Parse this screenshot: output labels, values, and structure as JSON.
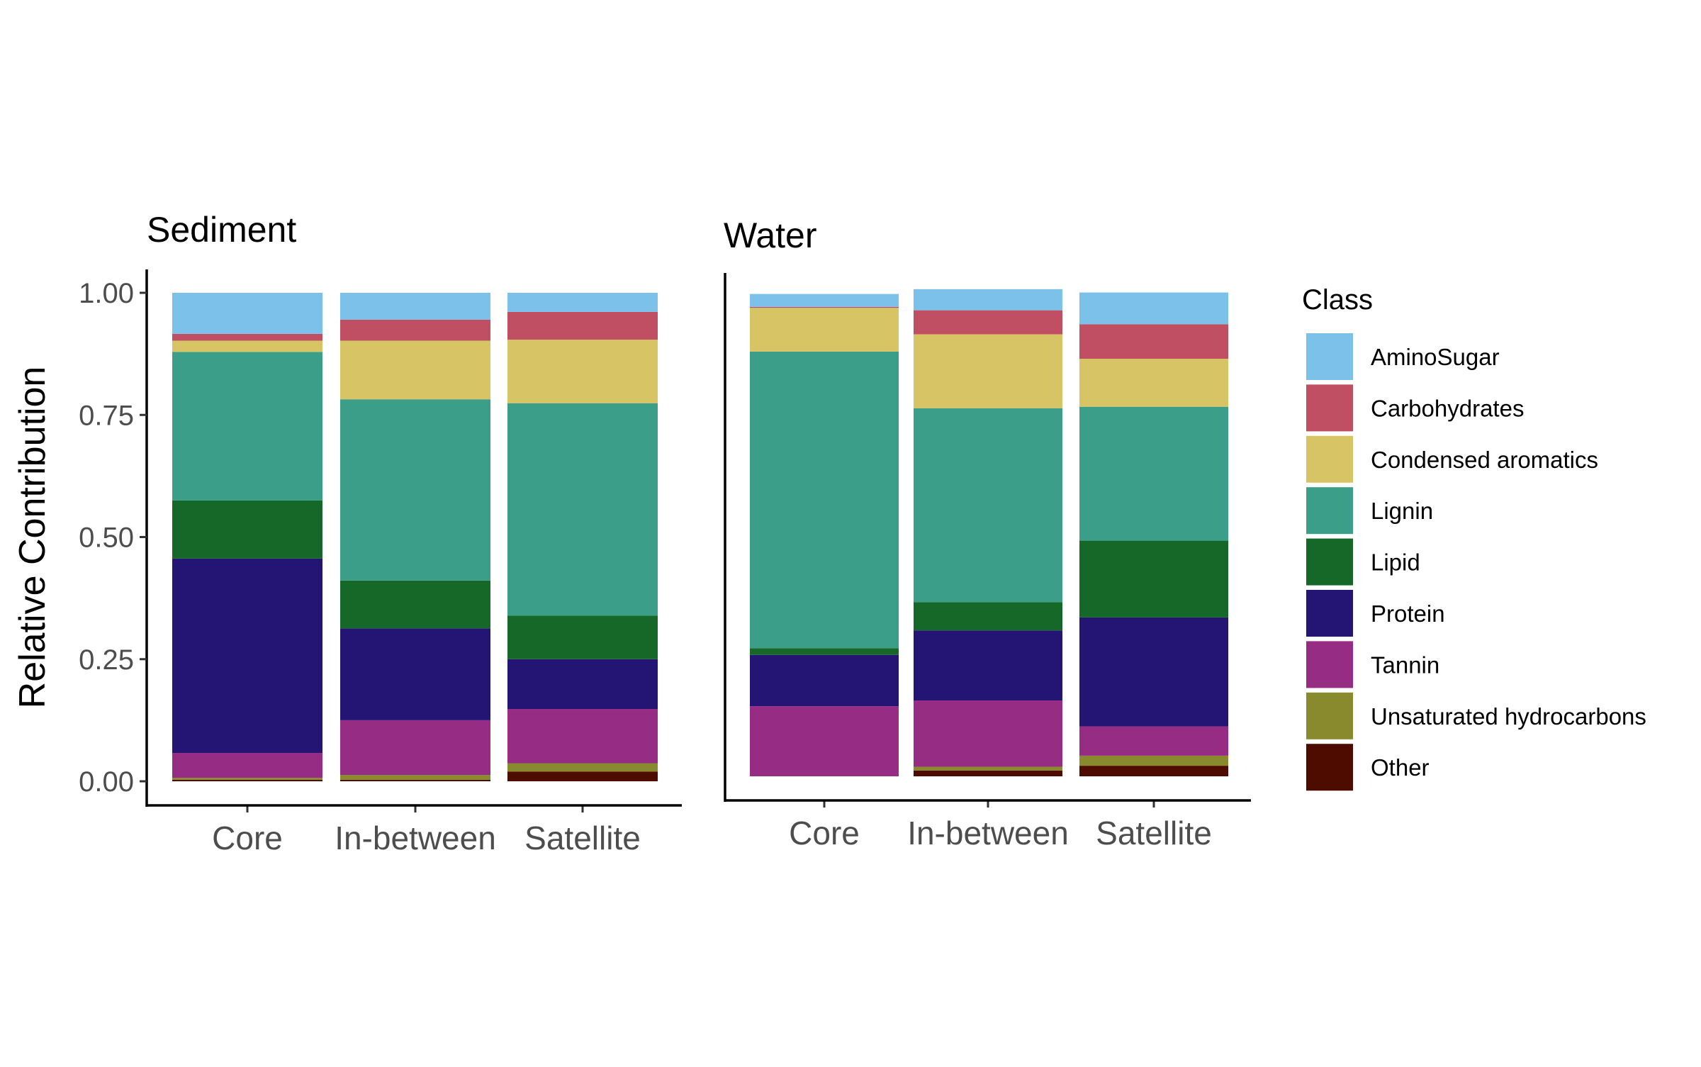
{
  "chart_data": {
    "type": "bar",
    "stacked": true,
    "ylabel": "Relative Contribution",
    "yticks": [
      "0.00",
      "0.25",
      "0.50",
      "0.75",
      "1.00"
    ],
    "ylim": [
      0,
      1
    ],
    "categories": [
      "Core",
      "In-between",
      "Satellite"
    ],
    "legend": {
      "title": "Class",
      "placement": "right",
      "entries": [
        {
          "name": "AminoSugar",
          "color": "#7bc1ea"
        },
        {
          "name": "Carbohydrates",
          "color": "#c04f64"
        },
        {
          "name": "Condensed aromatics",
          "color": "#d7c465"
        },
        {
          "name": "Lignin",
          "color": "#3b9e88"
        },
        {
          "name": "Lipid",
          "color": "#156828"
        },
        {
          "name": "Protein",
          "color": "#241473"
        },
        {
          "name": "Tannin",
          "color": "#972c85"
        },
        {
          "name": "Unsaturated hydrocarbons",
          "color": "#898a2e"
        },
        {
          "name": "Other",
          "color": "#4e0b00"
        }
      ]
    },
    "stack_order_bottom_to_top": [
      "Other",
      "Unsaturated hydrocarbons",
      "Tannin",
      "Protein",
      "Lipid",
      "Lignin",
      "Condensed aromatics",
      "Carbohydrates",
      "AminoSugar"
    ],
    "panels": [
      {
        "title": "Sediment",
        "series": [
          {
            "name": "Other",
            "values": [
              0.003,
              0.003,
              0.02
            ]
          },
          {
            "name": "Unsaturated hydrocarbons",
            "values": [
              0.004,
              0.01,
              0.017
            ]
          },
          {
            "name": "Tannin",
            "values": [
              0.051,
              0.112,
              0.111
            ]
          },
          {
            "name": "Protein",
            "values": [
              0.398,
              0.188,
              0.102
            ]
          },
          {
            "name": "Lipid",
            "values": [
              0.119,
              0.098,
              0.089
            ]
          },
          {
            "name": "Lignin",
            "values": [
              0.304,
              0.371,
              0.435
            ]
          },
          {
            "name": "Condensed aromatics",
            "values": [
              0.023,
              0.12,
              0.13
            ]
          },
          {
            "name": "Carbohydrates",
            "values": [
              0.014,
              0.043,
              0.057
            ]
          },
          {
            "name": "AminoSugar",
            "values": [
              0.084,
              0.055,
              0.039
            ]
          }
        ]
      },
      {
        "title": "Water",
        "series": [
          {
            "name": "Other",
            "values": [
              0.0,
              0.012,
              0.022
            ]
          },
          {
            "name": "Unsaturated hydrocarbons",
            "values": [
              0.0,
              0.008,
              0.021
            ]
          },
          {
            "name": "Tannin",
            "values": [
              0.146,
              0.138,
              0.061
            ]
          },
          {
            "name": "Protein",
            "values": [
              0.107,
              0.146,
              0.227
            ]
          },
          {
            "name": "Lipid",
            "values": [
              0.014,
              0.059,
              0.16
            ]
          },
          {
            "name": "Lignin",
            "values": [
              0.618,
              0.404,
              0.279
            ]
          },
          {
            "name": "Condensed aromatics",
            "values": [
              0.091,
              0.154,
              0.1
            ]
          },
          {
            "name": "Carbohydrates",
            "values": [
              0.002,
              0.05,
              0.072
            ]
          },
          {
            "name": "AminoSugar",
            "values": [
              0.027,
              0.044,
              0.066
            ]
          }
        ]
      }
    ]
  }
}
